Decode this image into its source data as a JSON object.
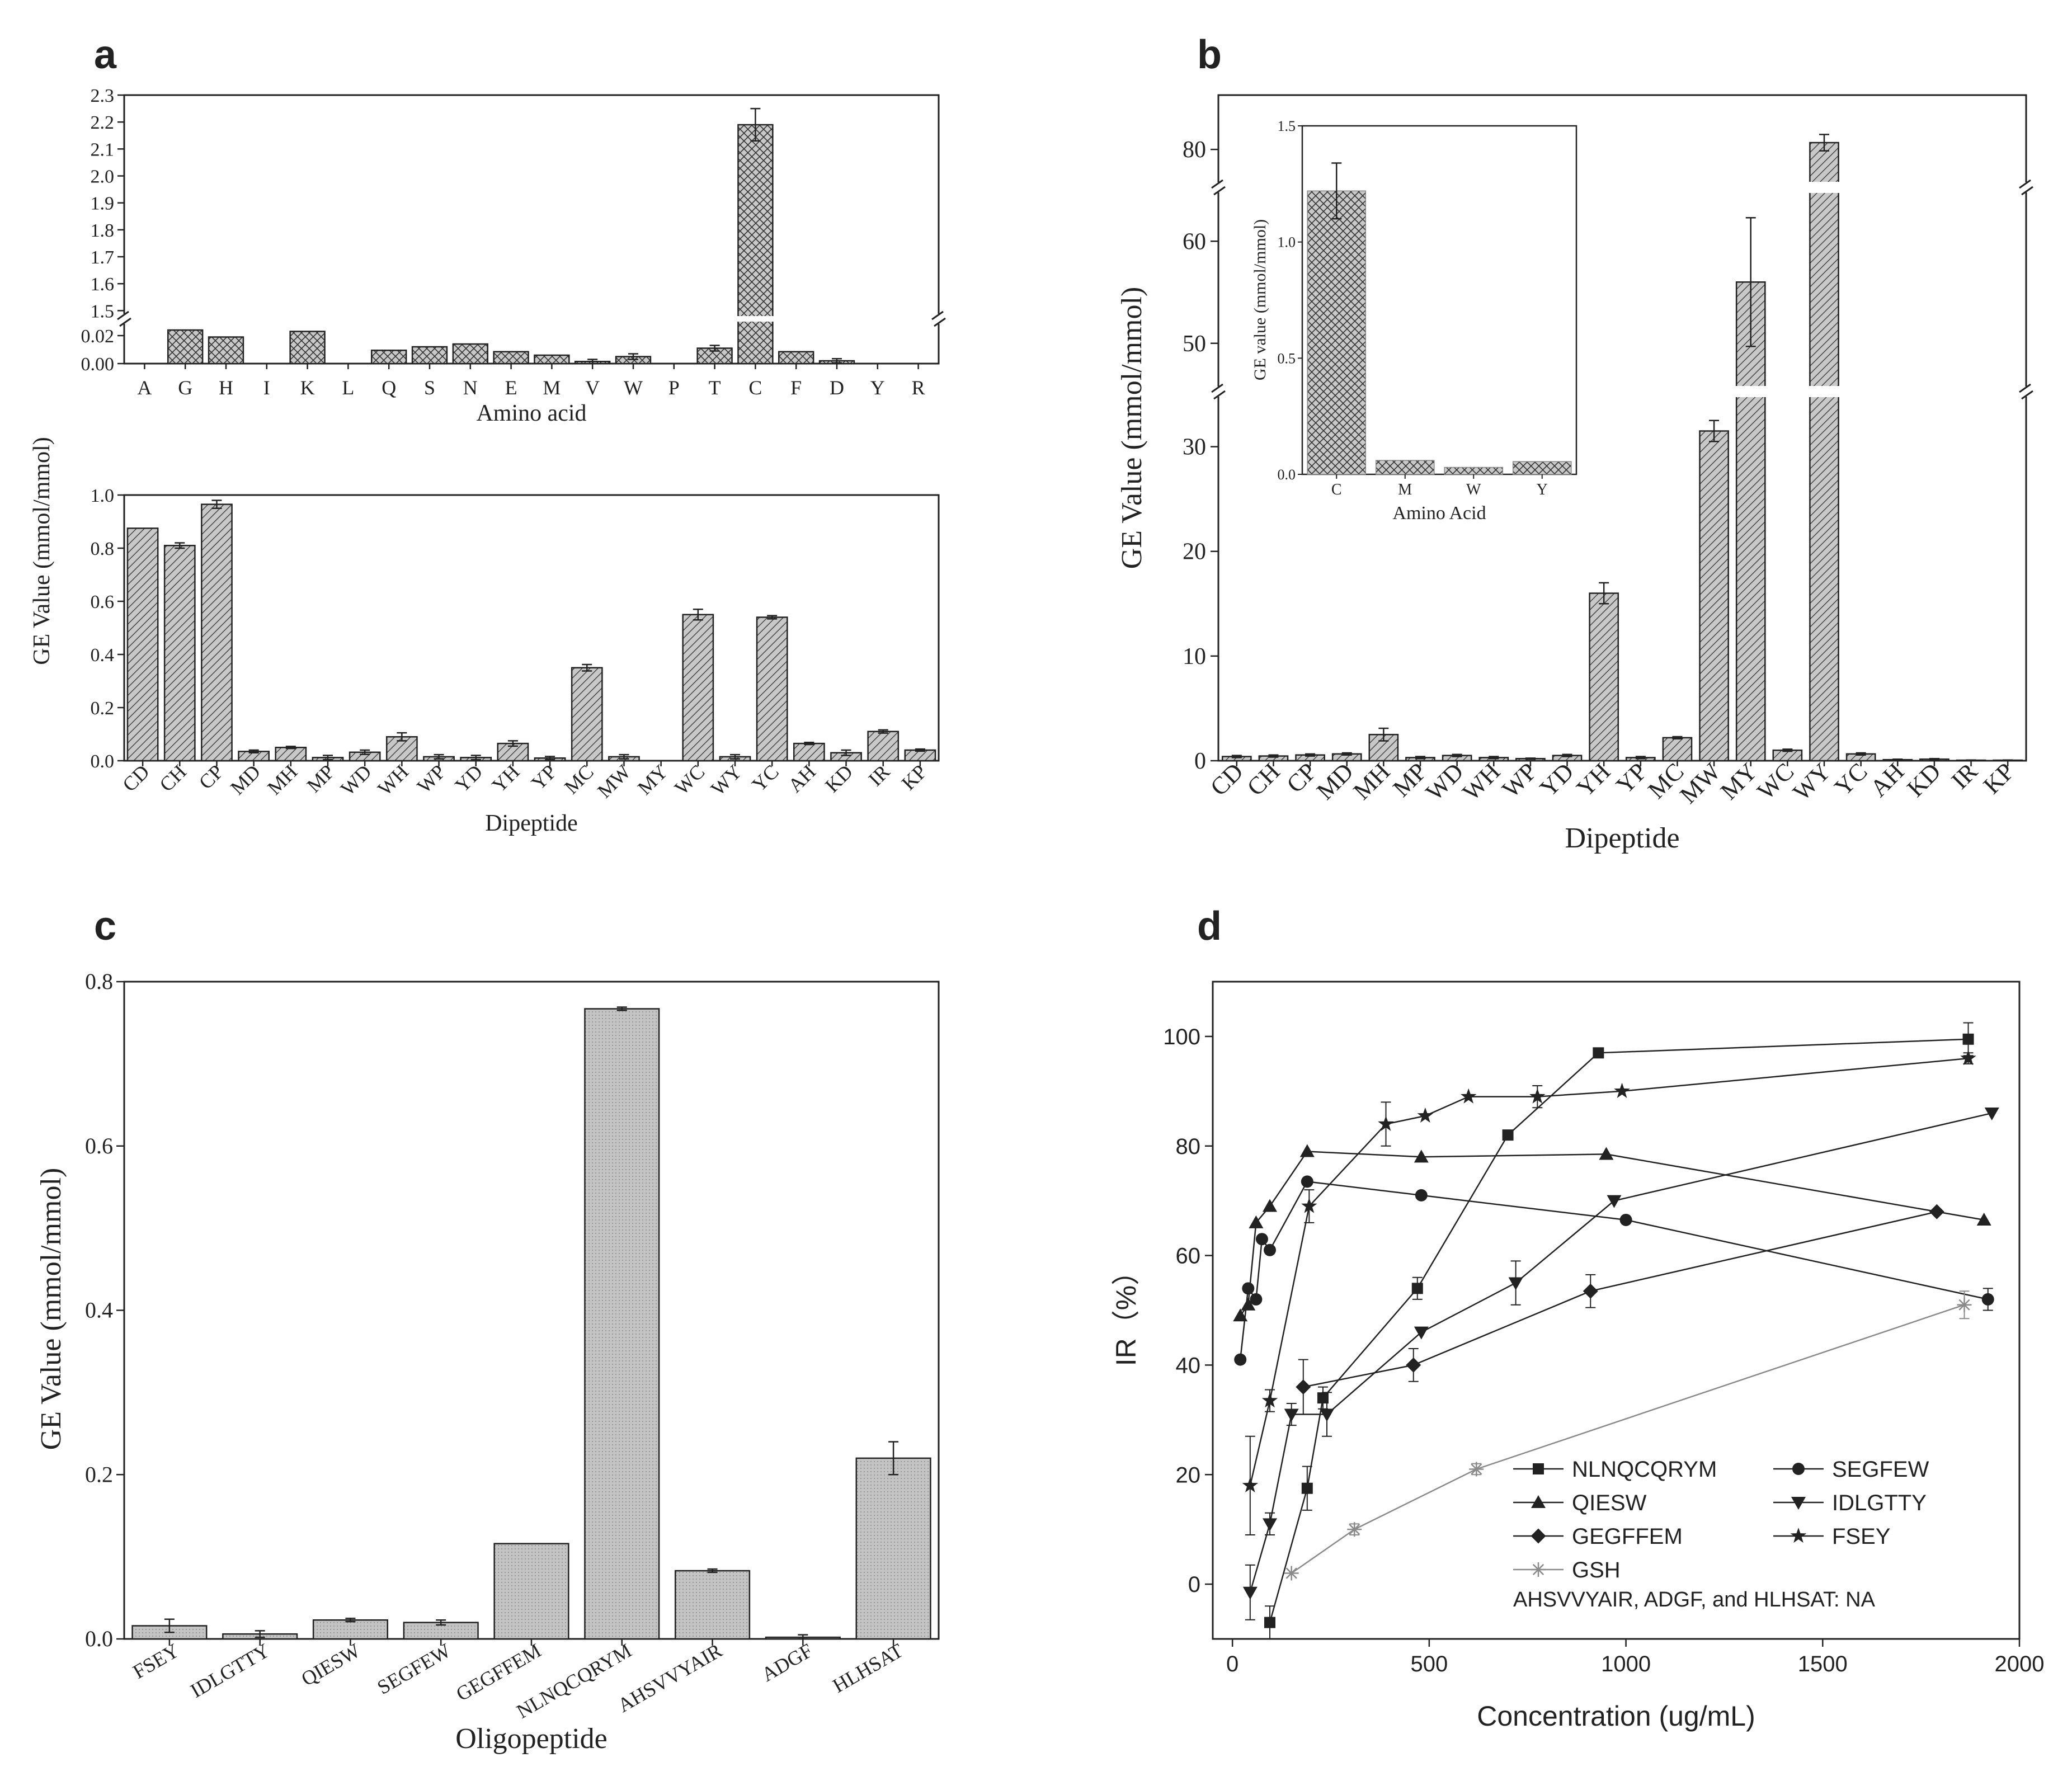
{
  "figure": {
    "panel_labels": [
      "a",
      "b",
      "c",
      "d"
    ],
    "axis_break_symbol": "//"
  },
  "colors": {
    "bar_fill": "#c8c8c8",
    "axis": "#222222",
    "text": "#222222",
    "gsh_line": "#8a8a8a"
  },
  "chart_data": [
    {
      "id": "a_top",
      "panel": "a",
      "type": "bar",
      "pattern": "crosshatch",
      "xlabel": "Amino acid",
      "ylabel": "GE Value (mmol/mmol)",
      "categories": [
        "A",
        "G",
        "H",
        "I",
        "K",
        "L",
        "Q",
        "S",
        "N",
        "E",
        "M",
        "V",
        "W",
        "P",
        "T",
        "C",
        "F",
        "D",
        "Y",
        "R"
      ],
      "values": [
        0,
        0.024,
        0.019,
        0,
        0.023,
        0,
        0.0095,
        0.012,
        0.014,
        0.0085,
        0.006,
        0.0015,
        0.005,
        0,
        0.011,
        2.19,
        0.0085,
        0.002,
        0,
        0
      ],
      "errors": [
        0,
        0,
        0,
        0,
        0,
        0,
        0,
        0,
        0,
        0,
        0,
        0.0015,
        0.002,
        0,
        0.002,
        0.06,
        0,
        0.0015,
        0,
        0
      ],
      "lower_segment": {
        "ylim": [
          0,
          0.03
        ],
        "ticks": [
          "0.00",
          "0.02"
        ]
      },
      "upper_segment": {
        "ylim": [
          1.48,
          2.3
        ],
        "ticks": [
          "1.5",
          "1.6",
          "1.7",
          "1.8",
          "1.9",
          "2.0",
          "2.1",
          "2.2",
          "2.3"
        ]
      }
    },
    {
      "id": "a_bottom",
      "panel": "a",
      "type": "bar",
      "pattern": "diagonal",
      "xlabel": "Dipeptide",
      "ylabel": "GE Value (mmol/mmol)",
      "categories": [
        "CD",
        "CH",
        "CP",
        "MD",
        "MH",
        "MP",
        "WD",
        "WH",
        "WP",
        "YD",
        "YH",
        "YP",
        "MC",
        "MW",
        "MY",
        "WC",
        "WY",
        "YC",
        "AH",
        "KD",
        "IR",
        "KP"
      ],
      "values": [
        0.875,
        0.81,
        0.965,
        0.035,
        0.05,
        0.012,
        0.032,
        0.09,
        0.015,
        0.012,
        0.065,
        0.01,
        0.35,
        0.015,
        0,
        0.55,
        0.015,
        0.54,
        0.065,
        0.03,
        0.11,
        0.04
      ],
      "errors": [
        0,
        0.01,
        0.015,
        0.005,
        0.004,
        0.008,
        0.008,
        0.015,
        0.008,
        0.008,
        0.01,
        0.006,
        0.012,
        0.008,
        0,
        0.02,
        0.008,
        0.006,
        0.004,
        0.01,
        0.006,
        0.004
      ],
      "ylim": [
        0,
        1.0
      ],
      "yticks": [
        "0.0",
        "0.2",
        "0.4",
        "0.6",
        "0.8",
        "1.0"
      ]
    },
    {
      "id": "b_main",
      "panel": "b",
      "type": "bar",
      "pattern": "diagonal",
      "xlabel": "Dipeptide",
      "ylabel": "GE Value (mmol/mmol)",
      "categories": [
        "CD",
        "CH",
        "CP",
        "MD",
        "MH",
        "MP",
        "WD",
        "WH",
        "WP",
        "YD",
        "YH",
        "YP",
        "MC",
        "MW",
        "MY",
        "WC",
        "WY",
        "YC",
        "AH",
        "KD",
        "IR",
        "KP"
      ],
      "values": [
        0.4,
        0.45,
        0.55,
        0.65,
        2.5,
        0.3,
        0.5,
        0.3,
        0.2,
        0.5,
        16.0,
        0.3,
        2.2,
        31.5,
        56,
        1.0,
        80.5,
        0.65,
        0.1,
        0.15,
        0.05,
        0.05
      ],
      "errors": [
        0.1,
        0.1,
        0.1,
        0.1,
        0.6,
        0.1,
        0.1,
        0.1,
        0.05,
        0.1,
        1.0,
        0.1,
        0.1,
        1.0,
        6.3,
        0.1,
        0.6,
        0.1,
        0.05,
        0.05,
        0.02,
        0.02
      ],
      "segments": [
        {
          "ylim": [
            0,
            35
          ],
          "ticks": [
            "0",
            "10",
            "20",
            "30"
          ]
        },
        {
          "ylim": [
            45,
            65
          ],
          "ticks": [
            "50",
            "60"
          ]
        },
        {
          "ylim": [
            77,
            84
          ],
          "ticks": [
            "80"
          ]
        }
      ]
    },
    {
      "id": "b_inset",
      "panel": "b",
      "type": "bar",
      "pattern": "crosshatch",
      "xlabel": "Amino Acid",
      "ylabel": "GE value (mmol/mmol)",
      "categories": [
        "C",
        "M",
        "W",
        "Y"
      ],
      "values": [
        1.22,
        0.06,
        0.03,
        0.055
      ],
      "errors": [
        0.12,
        0,
        0,
        0
      ],
      "ylim": [
        0,
        1.5
      ],
      "yticks": [
        "0.0",
        "0.5",
        "1.0",
        "1.5"
      ]
    },
    {
      "id": "c",
      "panel": "c",
      "type": "bar",
      "pattern": "dots",
      "xlabel": "Oligopeptide",
      "ylabel": "GE Value (mmol/mmol)",
      "categories": [
        "FSEY",
        "IDLGTTY",
        "QIESW",
        "SEGFEW",
        "GEGFFEM",
        "NLNQCQRYM",
        "AHSVVYAIR",
        "ADGF",
        "HLHSAT"
      ],
      "values": [
        0.016,
        0.006,
        0.023,
        0.02,
        0.116,
        0.767,
        0.083,
        0.002,
        0.22
      ],
      "errors": [
        0.008,
        0.004,
        0.002,
        0.003,
        0,
        0.002,
        0.002,
        0.003,
        0.02
      ],
      "ylim": [
        0,
        0.8
      ],
      "yticks": [
        "0.0",
        "0.2",
        "0.4",
        "0.6",
        "0.8"
      ]
    },
    {
      "id": "d",
      "panel": "d",
      "type": "line",
      "xlabel": "Concentration (ug/mL)",
      "ylabel": "IR（%）",
      "xlim": [
        -50,
        2000
      ],
      "ylim": [
        -10,
        110
      ],
      "xticks": [
        "0",
        "500",
        "1000",
        "1500",
        "2000"
      ],
      "yticks": [
        "0",
        "20",
        "40",
        "60",
        "80",
        "100"
      ],
      "legend_position": "bottom-right",
      "note": "AHSVVYAIR, ADGF, and HLHSAT: NA",
      "series": [
        {
          "name": "NLNQCQRYM",
          "marker": "square",
          "x": [
            95,
            190,
            230,
            470,
            700,
            930,
            1870
          ],
          "y": [
            -7,
            17.5,
            34,
            54,
            82,
            97,
            99.5
          ],
          "errors": [
            3,
            4,
            2,
            2,
            0,
            0,
            3
          ]
        },
        {
          "name": "SEGFEW",
          "marker": "circle",
          "x": [
            20,
            40,
            60,
            75,
            95,
            190,
            480,
            1000,
            1920
          ],
          "y": [
            41,
            54,
            52,
            63,
            61,
            73.5,
            71,
            66.5,
            52
          ],
          "errors": [
            0,
            0,
            0,
            0,
            0,
            0,
            0,
            0,
            2
          ]
        },
        {
          "name": "QIESW",
          "marker": "triangle-up",
          "x": [
            20,
            40,
            60,
            95,
            190,
            480,
            950,
            1910
          ],
          "y": [
            49,
            51,
            66,
            69,
            79,
            78,
            78.5,
            66.5
          ],
          "errors": [
            0,
            0,
            0,
            0,
            0,
            0,
            0,
            0
          ]
        },
        {
          "name": "IDLGTTY",
          "marker": "triangle-down",
          "x": [
            45,
            95,
            150,
            240,
            480,
            720,
            970,
            1930
          ],
          "y": [
            -1.5,
            11,
            31,
            31,
            46,
            55,
            70,
            86
          ],
          "errors": [
            5,
            2,
            2,
            4,
            0,
            4,
            0,
            0
          ]
        },
        {
          "name": "GEGFFEM",
          "marker": "diamond",
          "x": [
            180,
            460,
            910,
            1790
          ],
          "y": [
            36,
            40,
            53.5,
            68
          ],
          "errors": [
            5,
            3,
            3,
            0
          ]
        },
        {
          "name": "FSEY",
          "marker": "star",
          "x": [
            45,
            95,
            195,
            390,
            490,
            600,
            775,
            990,
            1870
          ],
          "y": [
            18,
            33.5,
            69,
            84,
            85.5,
            89,
            89,
            90,
            96
          ],
          "errors": [
            9,
            2,
            3,
            4,
            0,
            0,
            2,
            0,
            1
          ]
        },
        {
          "name": "GSH",
          "marker": "asterisk",
          "x": [
            150,
            310,
            620,
            1860
          ],
          "y": [
            2,
            10,
            21,
            51
          ],
          "errors": [
            0,
            1,
            1,
            2.5
          ]
        }
      ]
    }
  ]
}
